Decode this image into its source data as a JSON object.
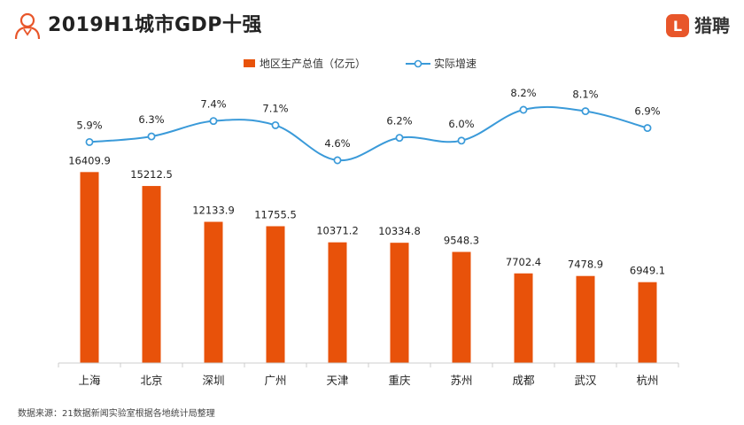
{
  "header": {
    "title": "2019H1城市GDP十强",
    "brand_name": "猎聘",
    "brand_letter": "L",
    "brand_color": "#e8562a"
  },
  "footer": {
    "source": "数据来源：21数据新闻实验室根据各地统计局整理"
  },
  "chart_data": {
    "type": "bar",
    "title": "2019H1城市GDP十强",
    "categories": [
      "上海",
      "北京",
      "深圳",
      "广州",
      "天津",
      "重庆",
      "苏州",
      "成都",
      "武汉",
      "杭州"
    ],
    "series": [
      {
        "name": "地区生产总值（亿元）",
        "type": "bar",
        "color": "#e8520a",
        "values": [
          16409.9,
          15212.5,
          12133.9,
          11755.5,
          10371.2,
          10334.8,
          9548.3,
          7702.4,
          7478.9,
          6949.1
        ],
        "labels": [
          "16409.9",
          "15212.5",
          "12133.9",
          "11755.5",
          "10371.2",
          "10334.8",
          "9548.3",
          "7702.4",
          "7478.9",
          "6949.1"
        ]
      },
      {
        "name": "实际增速",
        "type": "line",
        "color": "#3a9ad9",
        "values": [
          5.9,
          6.3,
          7.4,
          7.1,
          4.6,
          6.2,
          6.0,
          8.2,
          8.1,
          6.9
        ],
        "labels": [
          "5.9%",
          "6.3%",
          "7.4%",
          "7.1%",
          "4.6%",
          "6.2%",
          "6.0%",
          "8.2%",
          "8.1%",
          "6.9%"
        ]
      }
    ],
    "ylim_bar": [
      0,
      21000
    ],
    "ylim_line": [
      4.6,
      8.2
    ],
    "legend_position": "top-center",
    "grid": false
  }
}
